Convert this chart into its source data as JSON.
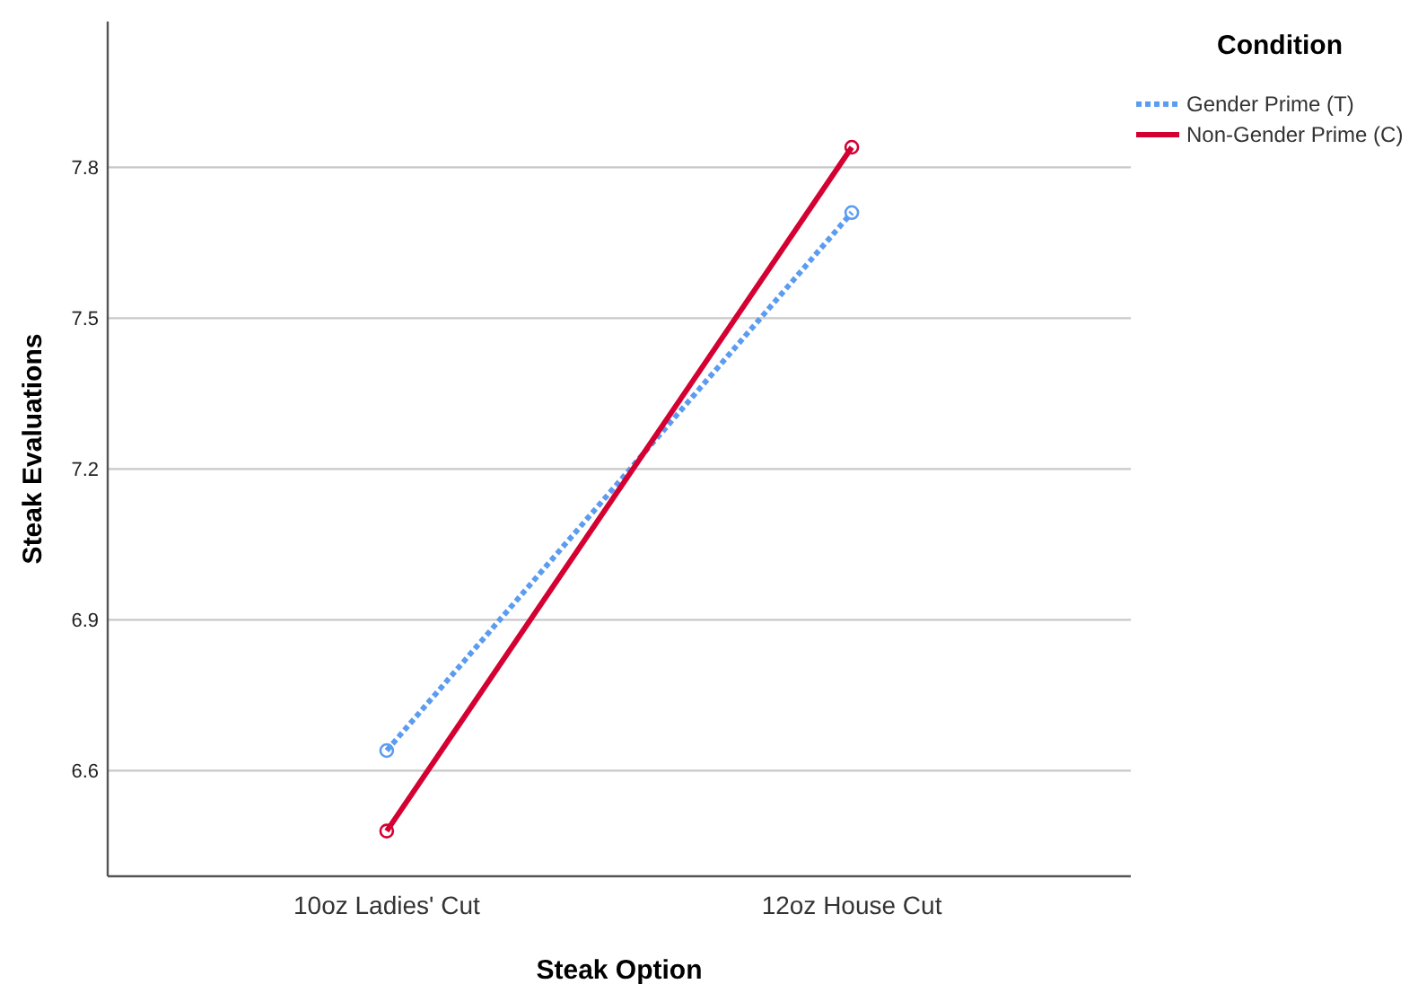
{
  "chart_data": {
    "type": "line",
    "xlabel": "Steak Option",
    "ylabel": "Steak Evaluations",
    "legend_title": "Condition",
    "categories": [
      "10oz Ladies' Cut",
      "12oz House Cut"
    ],
    "series": [
      {
        "name": "Gender Prime (T)",
        "color": "#5b9cf0",
        "values": [
          6.64,
          7.71
        ],
        "line_style": "dotted"
      },
      {
        "name": "Non-Gender Prime (C)",
        "color": "#d50032",
        "values": [
          6.48,
          7.84
        ],
        "line_style": "solid"
      }
    ],
    "ylim": [
      6.39,
      8.09
    ],
    "yticks": [
      6.6,
      6.9,
      7.2,
      7.5,
      7.8
    ],
    "grid": "y",
    "legend": "top right",
    "marker": "circle"
  }
}
